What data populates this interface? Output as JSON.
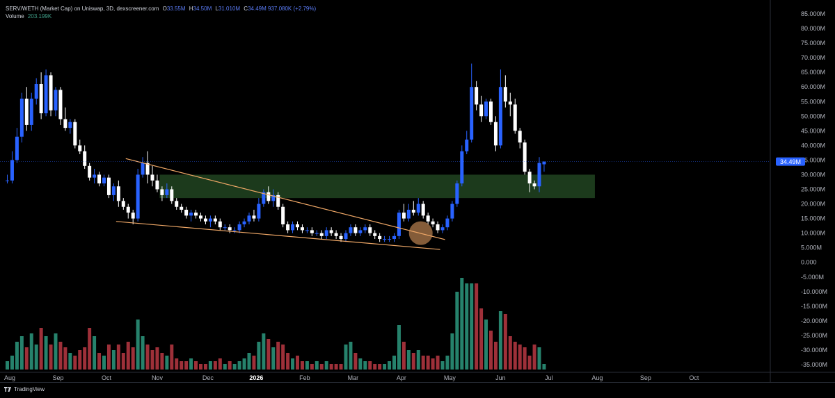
{
  "header": {
    "symbol": "SERV/WETH (Market Cap) on Uniswap, 3D, dexscreener.com",
    "ohlc": [
      {
        "k": "O",
        "v": "33.55M"
      },
      {
        "k": "H",
        "v": "34.50M"
      },
      {
        "k": "L",
        "v": "31.010M"
      },
      {
        "k": "C",
        "v": "34.49M"
      },
      {
        "k": "",
        "v": "937.080K (+2.79%)"
      }
    ],
    "volume_label": "Volume",
    "volume_value": "203.199K"
  },
  "footer": {
    "brand": "TradingView"
  },
  "colors": {
    "up": "#2962ff",
    "down": "#ffffff",
    "vol_up": "#26826c",
    "vol_down": "#9e3039",
    "trendline": "#f0a867",
    "zone": "#1c3a1c",
    "background": "#000000"
  },
  "chart_data": {
    "type": "candlestick",
    "interval": "3D",
    "current_price": "34.49M",
    "y_axis": {
      "range_millions": [
        -37,
        87
      ],
      "tick_labels": [
        "85.000M",
        "80.000M",
        "75.000M",
        "70.000M",
        "65.000M",
        "60.000M",
        "55.000M",
        "50.000M",
        "45.000M",
        "40.000M",
        "35.000M",
        "30.000M",
        "25.000M",
        "20.000M",
        "15.000M",
        "10.000M",
        "5.000M",
        "0.000",
        "-5.000M",
        "-10.000M",
        "-15.000M",
        "-20.000M",
        "-25.000M",
        "-30.000M",
        "-35.000M"
      ],
      "tick_values_millions": [
        85,
        80,
        75,
        70,
        65,
        60,
        55,
        50,
        45,
        40,
        35,
        30,
        25,
        20,
        15,
        10,
        5,
        0,
        -5,
        -10,
        -15,
        -20,
        -25,
        -30,
        -35
      ]
    },
    "x_axis": {
      "labels": [
        "Aug",
        "Sep",
        "Oct",
        "Nov",
        "Dec",
        "2026",
        "Feb",
        "Mar",
        "Apr",
        "May",
        "Jun",
        "Jul",
        "Aug",
        "Sep",
        "Oct"
      ],
      "label_candle_index": [
        0.5,
        10.5,
        20.5,
        31,
        41.5,
        51.5,
        61.5,
        71.5,
        81.5,
        91.5,
        102,
        112,
        122,
        132,
        142
      ],
      "bold": [
        "2026"
      ]
    },
    "units": "millions",
    "candles": [
      {
        "o": 28,
        "h": 30,
        "l": 27,
        "c": 28,
        "v": 0.3
      },
      {
        "o": 28,
        "h": 38,
        "l": 27,
        "c": 35,
        "v": 0.5
      },
      {
        "o": 35,
        "h": 46,
        "l": 34,
        "c": 43,
        "v": 1.0
      },
      {
        "o": 43,
        "h": 58,
        "l": 41,
        "c": 56,
        "v": 1.2
      },
      {
        "o": 56,
        "h": 60,
        "l": 45,
        "c": 47,
        "v": 0.8
      },
      {
        "o": 47,
        "h": 58,
        "l": 45,
        "c": 56,
        "v": 1.3
      },
      {
        "o": 56,
        "h": 63,
        "l": 54,
        "c": 61,
        "v": 0.9
      },
      {
        "o": 61,
        "h": 65,
        "l": 49,
        "c": 51,
        "v": 1.5
      },
      {
        "o": 51,
        "h": 66,
        "l": 50,
        "c": 64,
        "v": 1.2
      },
      {
        "o": 64,
        "h": 65,
        "l": 50,
        "c": 52,
        "v": 0.9
      },
      {
        "o": 52,
        "h": 60,
        "l": 50,
        "c": 59,
        "v": 1.3
      },
      {
        "o": 59,
        "h": 60,
        "l": 47,
        "c": 49,
        "v": 1.0
      },
      {
        "o": 49,
        "h": 53,
        "l": 45,
        "c": 46,
        "v": 0.8
      },
      {
        "o": 46,
        "h": 49,
        "l": 44,
        "c": 48,
        "v": 0.6
      },
      {
        "o": 48,
        "h": 49,
        "l": 39,
        "c": 40,
        "v": 0.5
      },
      {
        "o": 40,
        "h": 42,
        "l": 37,
        "c": 38,
        "v": 0.7
      },
      {
        "o": 38,
        "h": 40,
        "l": 32,
        "c": 33,
        "v": 0.8
      },
      {
        "o": 33,
        "h": 34,
        "l": 28,
        "c": 29,
        "v": 1.5
      },
      {
        "o": 29,
        "h": 32,
        "l": 27,
        "c": 30,
        "v": 1.2
      },
      {
        "o": 30,
        "h": 31,
        "l": 26,
        "c": 27,
        "v": 0.6
      },
      {
        "o": 27,
        "h": 30,
        "l": 26,
        "c": 29,
        "v": 0.5
      },
      {
        "o": 29,
        "h": 30,
        "l": 22,
        "c": 23,
        "v": 0.9
      },
      {
        "o": 23,
        "h": 27,
        "l": 21,
        "c": 26,
        "v": 0.7
      },
      {
        "o": 26,
        "h": 28,
        "l": 19,
        "c": 21,
        "v": 0.9
      },
      {
        "o": 21,
        "h": 22,
        "l": 18,
        "c": 19,
        "v": 0.6
      },
      {
        "o": 19,
        "h": 20,
        "l": 15,
        "c": 17,
        "v": 1.0
      },
      {
        "o": 17,
        "h": 18,
        "l": 13,
        "c": 15,
        "v": 0.8
      },
      {
        "o": 15,
        "h": 32,
        "l": 14,
        "c": 30,
        "v": 1.8
      },
      {
        "o": 30,
        "h": 36,
        "l": 29,
        "c": 34,
        "v": 1.2
      },
      {
        "o": 34,
        "h": 38,
        "l": 27,
        "c": 30,
        "v": 0.9
      },
      {
        "o": 30,
        "h": 33,
        "l": 26,
        "c": 28,
        "v": 0.7
      },
      {
        "o": 28,
        "h": 30,
        "l": 24,
        "c": 25,
        "v": 0.8
      },
      {
        "o": 25,
        "h": 26,
        "l": 21,
        "c": 23,
        "v": 0.6
      },
      {
        "o": 23,
        "h": 27,
        "l": 22,
        "c": 25,
        "v": 0.5
      },
      {
        "o": 25,
        "h": 26,
        "l": 20,
        "c": 21,
        "v": 0.9
      },
      {
        "o": 21,
        "h": 22,
        "l": 18,
        "c": 19,
        "v": 0.4
      },
      {
        "o": 19,
        "h": 20,
        "l": 17,
        "c": 18,
        "v": 0.3
      },
      {
        "o": 18,
        "h": 19,
        "l": 15,
        "c": 16,
        "v": 0.3
      },
      {
        "o": 16,
        "h": 18,
        "l": 14,
        "c": 17,
        "v": 0.4
      },
      {
        "o": 17,
        "h": 18,
        "l": 15,
        "c": 16,
        "v": 0.3
      },
      {
        "o": 16,
        "h": 17,
        "l": 14,
        "c": 15,
        "v": 0.2
      },
      {
        "o": 15,
        "h": 16,
        "l": 13,
        "c": 14,
        "v": 0.2
      },
      {
        "o": 14,
        "h": 16,
        "l": 12,
        "c": 15,
        "v": 0.3
      },
      {
        "o": 15,
        "h": 16,
        "l": 13,
        "c": 14,
        "v": 0.3
      },
      {
        "o": 14,
        "h": 15,
        "l": 11,
        "c": 12,
        "v": 0.4
      },
      {
        "o": 12,
        "h": 13,
        "l": 11,
        "c": 12,
        "v": 0.2
      },
      {
        "o": 12,
        "h": 13,
        "l": 10,
        "c": 11,
        "v": 0.3
      },
      {
        "o": 11,
        "h": 12,
        "l": 10,
        "c": 11,
        "v": 0.2
      },
      {
        "o": 11,
        "h": 14,
        "l": 10,
        "c": 13,
        "v": 0.3
      },
      {
        "o": 13,
        "h": 15,
        "l": 12,
        "c": 14,
        "v": 0.4
      },
      {
        "o": 14,
        "h": 17,
        "l": 13,
        "c": 16,
        "v": 0.6
      },
      {
        "o": 16,
        "h": 18,
        "l": 14,
        "c": 15,
        "v": 0.5
      },
      {
        "o": 15,
        "h": 22,
        "l": 14,
        "c": 20,
        "v": 1.0
      },
      {
        "o": 20,
        "h": 25,
        "l": 19,
        "c": 24,
        "v": 1.3
      },
      {
        "o": 24,
        "h": 26,
        "l": 20,
        "c": 21,
        "v": 1.1
      },
      {
        "o": 21,
        "h": 25,
        "l": 19,
        "c": 23,
        "v": 0.8
      },
      {
        "o": 23,
        "h": 24,
        "l": 18,
        "c": 19,
        "v": 1.0
      },
      {
        "o": 19,
        "h": 20,
        "l": 12,
        "c": 13,
        "v": 0.9
      },
      {
        "o": 13,
        "h": 14,
        "l": 10,
        "c": 11,
        "v": 0.6
      },
      {
        "o": 11,
        "h": 14,
        "l": 10,
        "c": 13,
        "v": 0.4
      },
      {
        "o": 13,
        "h": 14,
        "l": 11,
        "c": 12,
        "v": 0.5
      },
      {
        "o": 12,
        "h": 13,
        "l": 10,
        "c": 11,
        "v": 0.3
      },
      {
        "o": 11,
        "h": 12,
        "l": 10,
        "c": 11,
        "v": 0.3
      },
      {
        "o": 11,
        "h": 12,
        "l": 9,
        "c": 10,
        "v": 0.2
      },
      {
        "o": 10,
        "h": 11,
        "l": 9,
        "c": 10,
        "v": 0.3
      },
      {
        "o": 10,
        "h": 11,
        "l": 8,
        "c": 9,
        "v": 0.2
      },
      {
        "o": 9,
        "h": 12,
        "l": 8,
        "c": 11,
        "v": 0.3
      },
      {
        "o": 11,
        "h": 12,
        "l": 9,
        "c": 10,
        "v": 0.2
      },
      {
        "o": 10,
        "h": 11,
        "l": 8,
        "c": 9,
        "v": 0.2
      },
      {
        "o": 9,
        "h": 10,
        "l": 7,
        "c": 8,
        "v": 0.2
      },
      {
        "o": 8,
        "h": 11,
        "l": 7,
        "c": 10,
        "v": 0.9
      },
      {
        "o": 10,
        "h": 13,
        "l": 9,
        "c": 12,
        "v": 1.0
      },
      {
        "o": 12,
        "h": 13,
        "l": 9,
        "c": 10,
        "v": 0.6
      },
      {
        "o": 10,
        "h": 12,
        "l": 9,
        "c": 11,
        "v": 0.4
      },
      {
        "o": 11,
        "h": 13,
        "l": 10,
        "c": 12,
        "v": 0.3
      },
      {
        "o": 12,
        "h": 13,
        "l": 9,
        "c": 10,
        "v": 0.3
      },
      {
        "o": 10,
        "h": 11,
        "l": 8,
        "c": 9,
        "v": 0.2
      },
      {
        "o": 9,
        "h": 10,
        "l": 7,
        "c": 8,
        "v": 0.2
      },
      {
        "o": 8,
        "h": 9,
        "l": 7,
        "c": 8,
        "v": 0.2
      },
      {
        "o": 8,
        "h": 9,
        "l": 7,
        "c": 8,
        "v": 0.3
      },
      {
        "o": 8,
        "h": 10,
        "l": 7,
        "c": 9,
        "v": 0.5
      },
      {
        "o": 9,
        "h": 18,
        "l": 8,
        "c": 17,
        "v": 1.6
      },
      {
        "o": 17,
        "h": 20,
        "l": 14,
        "c": 15,
        "v": 1.0
      },
      {
        "o": 15,
        "h": 20,
        "l": 14,
        "c": 18,
        "v": 0.7
      },
      {
        "o": 18,
        "h": 21,
        "l": 16,
        "c": 17,
        "v": 0.6
      },
      {
        "o": 17,
        "h": 22,
        "l": 16,
        "c": 20,
        "v": 0.7
      },
      {
        "o": 20,
        "h": 21,
        "l": 15,
        "c": 16,
        "v": 0.5
      },
      {
        "o": 16,
        "h": 17,
        "l": 13,
        "c": 14,
        "v": 0.5
      },
      {
        "o": 14,
        "h": 15,
        "l": 12,
        "c": 13,
        "v": 0.4
      },
      {
        "o": 13,
        "h": 14,
        "l": 10,
        "c": 11,
        "v": 0.5
      },
      {
        "o": 11,
        "h": 13,
        "l": 10,
        "c": 12,
        "v": 0.3
      },
      {
        "o": 12,
        "h": 16,
        "l": 11,
        "c": 15,
        "v": 0.5
      },
      {
        "o": 15,
        "h": 21,
        "l": 14,
        "c": 20,
        "v": 1.3
      },
      {
        "o": 20,
        "h": 28,
        "l": 19,
        "c": 27,
        "v": 2.8
      },
      {
        "o": 27,
        "h": 40,
        "l": 26,
        "c": 38,
        "v": 3.3
      },
      {
        "o": 38,
        "h": 45,
        "l": 37,
        "c": 42,
        "v": 3.1
      },
      {
        "o": 42,
        "h": 68,
        "l": 41,
        "c": 60,
        "v": 3.1
      },
      {
        "o": 60,
        "h": 62,
        "l": 52,
        "c": 54,
        "v": 3.1
      },
      {
        "o": 54,
        "h": 57,
        "l": 48,
        "c": 50,
        "v": 2.2
      },
      {
        "o": 50,
        "h": 56,
        "l": 49,
        "c": 55,
        "v": 1.8
      },
      {
        "o": 55,
        "h": 56,
        "l": 47,
        "c": 48,
        "v": 1.4
      },
      {
        "o": 48,
        "h": 50,
        "l": 38,
        "c": 40,
        "v": 1.0
      },
      {
        "o": 40,
        "h": 66,
        "l": 39,
        "c": 60,
        "v": 2.1
      },
      {
        "o": 60,
        "h": 64,
        "l": 53,
        "c": 55,
        "v": 2.0
      },
      {
        "o": 55,
        "h": 58,
        "l": 50,
        "c": 54,
        "v": 1.2
      },
      {
        "o": 54,
        "h": 56,
        "l": 44,
        "c": 45,
        "v": 1.0
      },
      {
        "o": 45,
        "h": 46,
        "l": 39,
        "c": 41,
        "v": 0.9
      },
      {
        "o": 41,
        "h": 42,
        "l": 30,
        "c": 31,
        "v": 0.8
      },
      {
        "o": 31,
        "h": 32,
        "l": 24,
        "c": 27,
        "v": 0.5
      },
      {
        "o": 27,
        "h": 28,
        "l": 25,
        "c": 26,
        "v": 0.9
      },
      {
        "o": 26,
        "h": 36,
        "l": 24,
        "c": 34,
        "v": 0.8
      },
      {
        "o": 33.55,
        "h": 34.5,
        "l": 31.01,
        "c": 34.49,
        "v": 0.2
      }
    ],
    "annotations": [
      {
        "type": "trendline",
        "from": {
          "i": 24.5,
          "p": 35.5
        },
        "to": {
          "i": 90.5,
          "p": 7.8
        }
      },
      {
        "type": "trendline",
        "from": {
          "i": 22.5,
          "p": 14
        },
        "to": {
          "i": 89.5,
          "p": 4.4
        }
      },
      {
        "type": "zone",
        "from_i": 31.5,
        "to_i": 121.5,
        "top": 30,
        "bottom": 22
      },
      {
        "type": "circle",
        "i": 85.5,
        "p": 10
      }
    ]
  }
}
